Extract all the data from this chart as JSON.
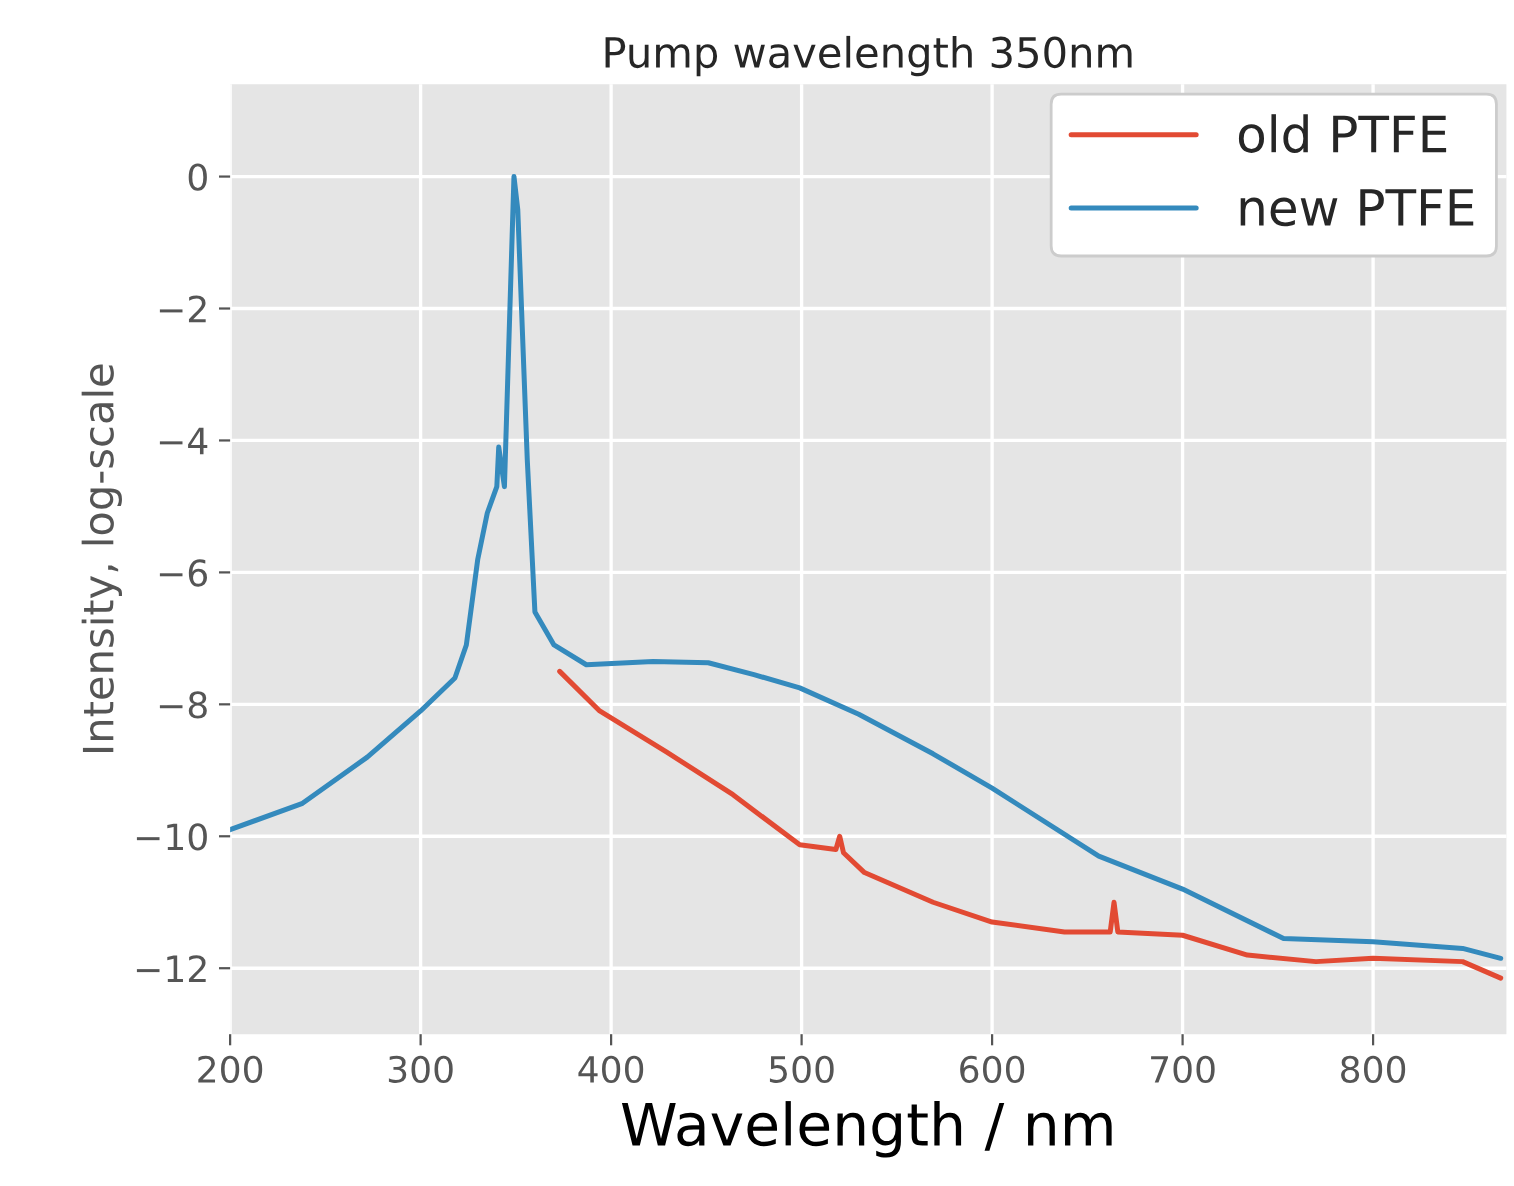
{
  "chart_data": {
    "type": "line",
    "title": "Pump wavelength 350nm",
    "xlabel": "Wavelength / nm",
    "ylabel": "Intensity, log-scale",
    "xlim": [
      200,
      870
    ],
    "ylim": [
      -13,
      1.4
    ],
    "xticks": [
      200,
      300,
      400,
      500,
      600,
      700,
      800
    ],
    "yticks": [
      {
        "value": 0,
        "label": "0"
      },
      {
        "value": -2,
        "label": "−2"
      },
      {
        "value": -4,
        "label": "−4"
      },
      {
        "value": -6,
        "label": "−6"
      },
      {
        "value": -8,
        "label": "−8"
      },
      {
        "value": -10,
        "label": "−10"
      },
      {
        "value": -12,
        "label": "−12"
      }
    ],
    "grid": true,
    "legend": "top right",
    "marker": "none",
    "line_style": "solid",
    "series": [
      {
        "name": "old PTFE",
        "color": "#e24a33",
        "x": [
          373,
          394,
          429,
          464,
          499,
          518,
          520,
          522,
          533,
          569,
          600,
          638,
          662,
          664,
          666,
          700,
          734,
          770,
          800,
          847,
          867
        ],
        "values": [
          -7.5,
          -8.1,
          -8.72,
          -9.37,
          -10.13,
          -10.2,
          -10.0,
          -10.25,
          -10.55,
          -11.0,
          -11.3,
          -11.45,
          -11.45,
          -11.0,
          -11.45,
          -11.5,
          -11.8,
          -11.9,
          -11.85,
          -11.9,
          -12.15
        ]
      },
      {
        "name": "new PTFE",
        "color": "#348abd",
        "x": [
          200,
          238,
          272,
          300,
          318,
          324,
          330,
          335,
          340,
          341,
          344,
          349,
          351,
          356,
          360,
          370,
          387,
          422,
          451,
          475,
          499,
          530,
          569,
          600,
          656,
          700,
          753,
          800,
          847,
          867
        ],
        "values": [
          -9.9,
          -9.5,
          -8.8,
          -8.1,
          -7.6,
          -7.1,
          -5.8,
          -5.1,
          -4.7,
          -4.1,
          -4.7,
          0,
          -0.5,
          -4.3,
          -6.6,
          -7.1,
          -7.4,
          -7.35,
          -7.37,
          -7.55,
          -7.75,
          -8.15,
          -8.75,
          -9.27,
          -10.3,
          -10.8,
          -11.55,
          -11.6,
          -11.7,
          -11.85
        ]
      }
    ]
  }
}
